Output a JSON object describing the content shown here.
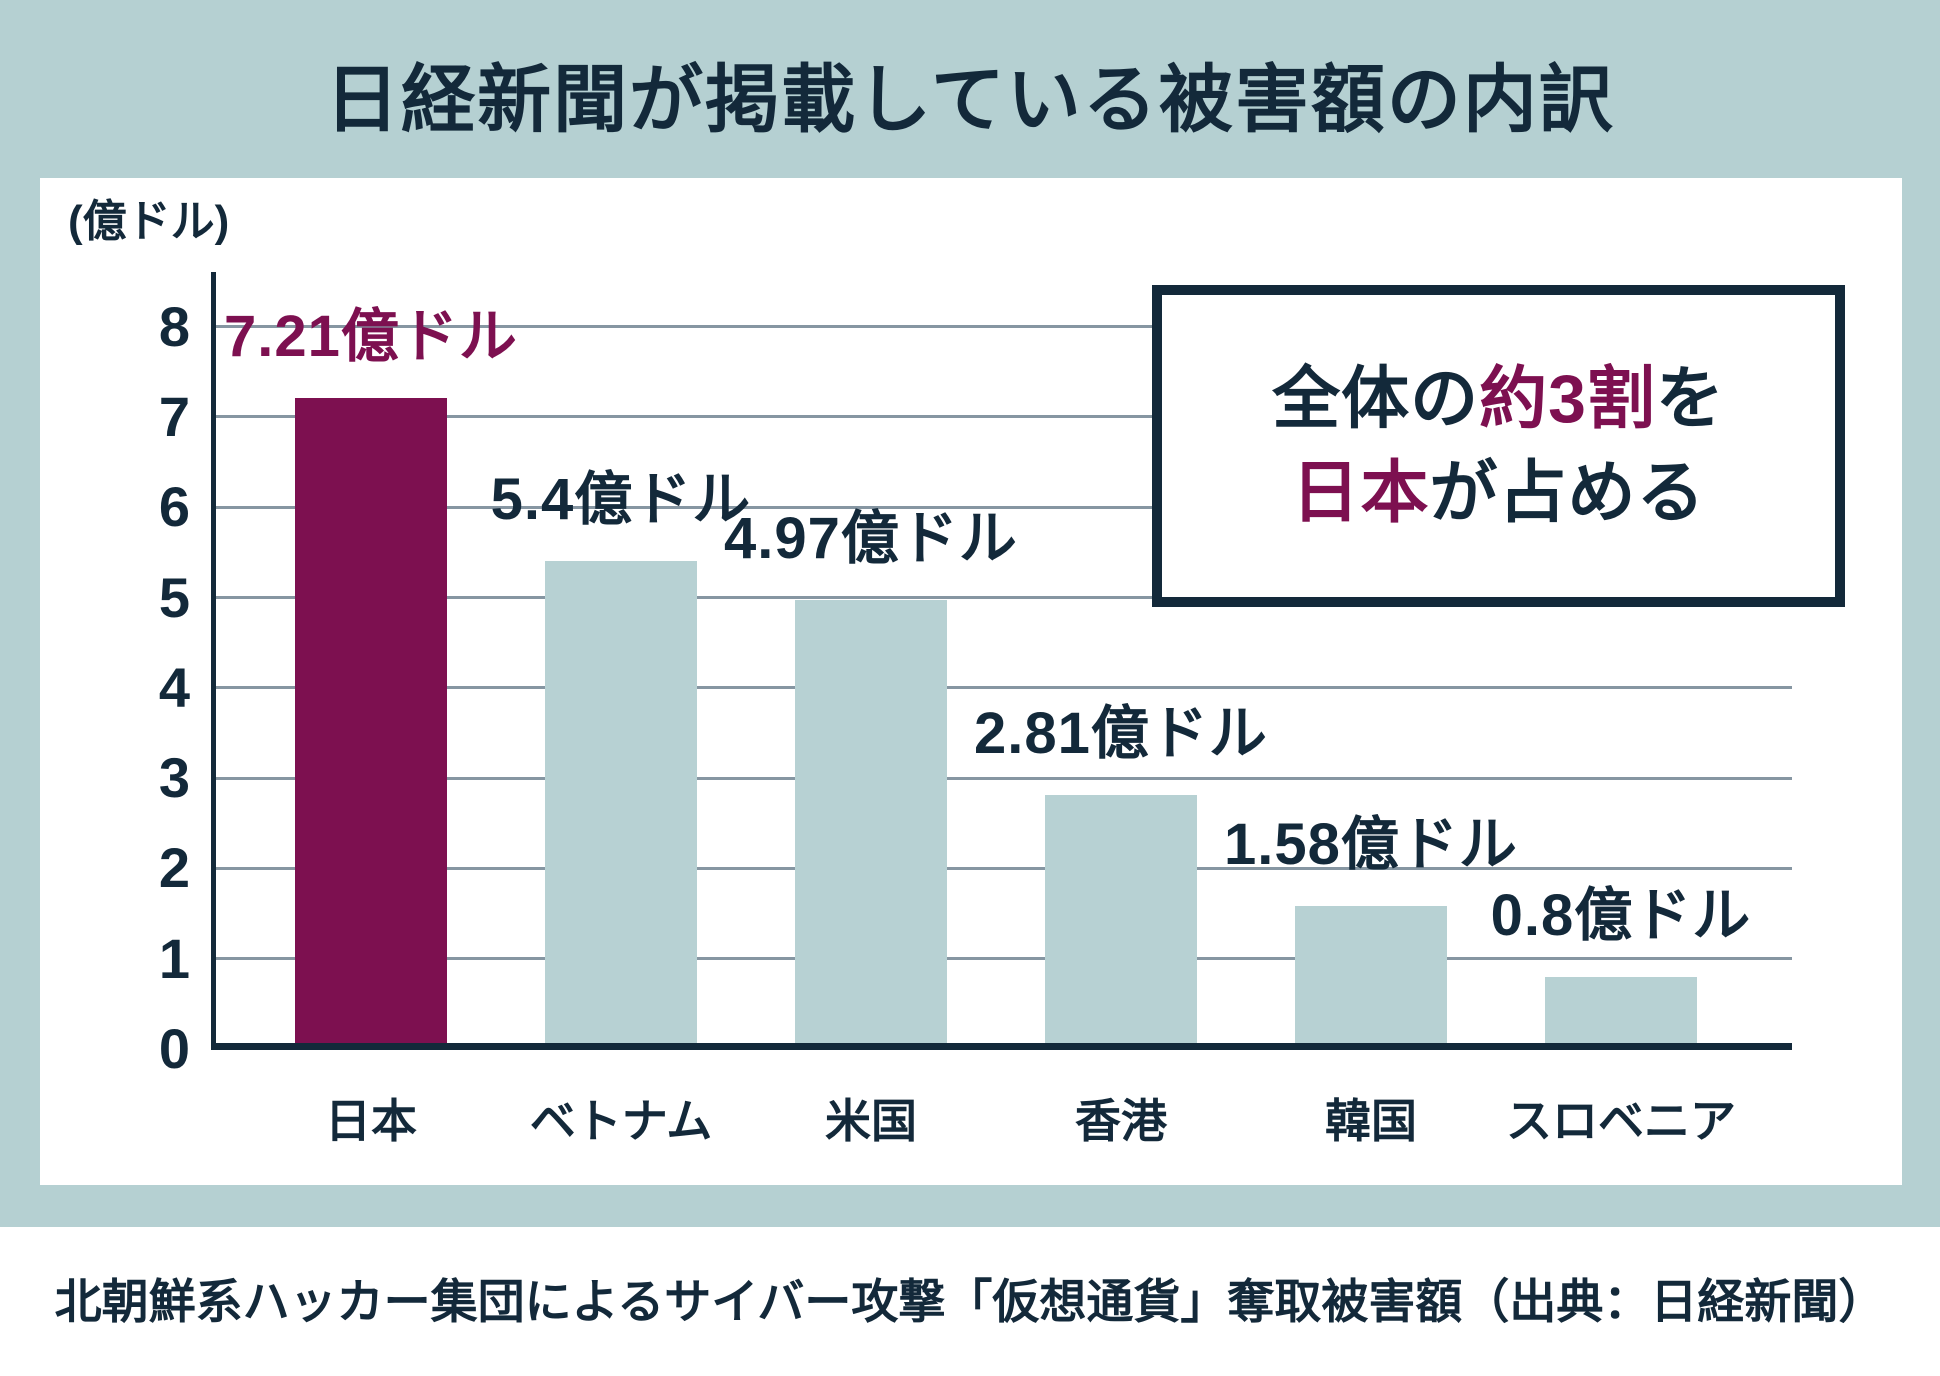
{
  "page": {
    "title": "日経新聞が掲載している被害額の内訳",
    "caption": "北朝鮮系ハッカー集団によるサイバー攻撃「仮想通貨」奪取被害額（出典：日経新聞）"
  },
  "callout": {
    "line1_prefix": "全体の",
    "line1_highlight": "約3割",
    "line1_suffix": "を",
    "line2_highlight": "日本",
    "line2_suffix": "が占める"
  },
  "chart_data": {
    "type": "bar",
    "title": "日経新聞が掲載している被害額の内訳",
    "ylabel": "(億ドル)",
    "categories": [
      "日本",
      "ベトナム",
      "米国",
      "香港",
      "韓国",
      "スロベニア"
    ],
    "values": [
      7.21,
      5.4,
      4.97,
      2.81,
      1.58,
      0.8
    ],
    "bar_labels": [
      "7.21億ドル",
      "5.4億ドル",
      "4.97億ドル",
      "2.81億ドル",
      "1.58億ドル",
      "0.8億ドル"
    ],
    "highlight_index": 0,
    "y_ticks": [
      0,
      1,
      2,
      3,
      4,
      5,
      6,
      7,
      8
    ],
    "ylim": [
      0,
      8
    ],
    "grid": true,
    "legend": "none",
    "annotation": "全体の約3割を日本が占める"
  },
  "colors": {
    "background_teal": "#b5d0d2",
    "panel_white": "#ffffff",
    "navy": "#13293a",
    "maroon": "#7d1050",
    "gridline_gray": "#8696a2",
    "bar_default": "#b7d1d3",
    "bar_highlight": "#7d1050"
  }
}
